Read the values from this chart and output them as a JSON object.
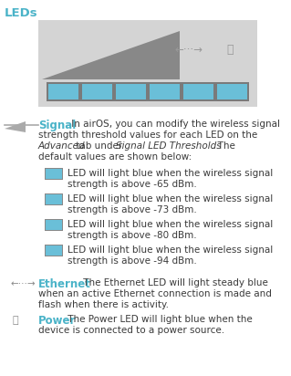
{
  "title": "LEDs",
  "title_color": "#4ab3c8",
  "bg_color": "#ffffff",
  "panel_bg": "#d4d4d4",
  "panel_border": "#c0c0c0",
  "led_bar_color": "#6abfd8",
  "led_border_color": "#6a6a6a",
  "tri_color": "#888888",
  "icon_color": "#999999",
  "signal_label": "Signal",
  "signal_color": "#4ab3c8",
  "body_color": "#3a3a3a",
  "led_items": [
    [
      "-65",
      "LED will light blue when the wireless signal",
      "strength is above -65 dBm."
    ],
    [
      "-73",
      "LED will light blue when the wireless signal",
      "strength is above -73 dBm."
    ],
    [
      "-80",
      "LED will light blue when the wireless signal",
      "strength is above -80 dBm."
    ],
    [
      "-94",
      "LED will light blue when the wireless signal",
      "strength is above -94 dBm."
    ]
  ],
  "ethernet_label": "Ethernet",
  "ethernet_color": "#4ab3c8",
  "ethernet_line1": " The Ethernet LED will light steady blue",
  "ethernet_line2": "when an active Ethernet connection is made and",
  "ethernet_line3": "flash when there is activity.",
  "power_label": "Power",
  "power_color": "#4ab3c8",
  "power_line1": " The Power LED will light blue when the",
  "power_line2": "device is connected to a power source.",
  "signal_lines": [
    " In airOS, you can modify the wireless signal",
    "strength threshold values for each LED on the",
    "default values are shown below:"
  ]
}
